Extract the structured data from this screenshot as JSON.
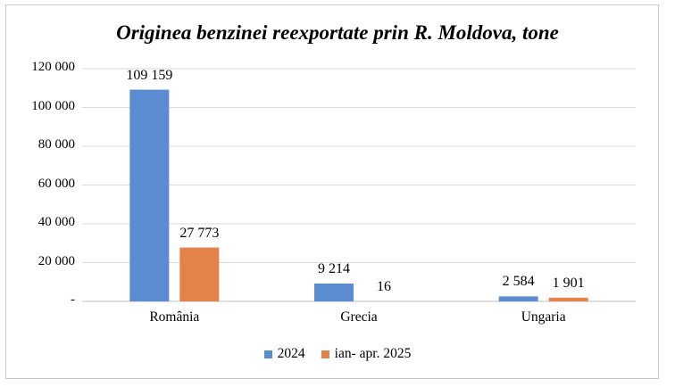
{
  "chart_data": {
    "type": "bar",
    "title": "Originea benzinei reexportate prin R. Moldova, tone",
    "categories": [
      "România",
      "Grecia",
      "Ungaria"
    ],
    "series": [
      {
        "name": "2024",
        "values": [
          109159,
          9214,
          2584
        ],
        "labels": [
          "109 159",
          "9 214",
          "2 584"
        ],
        "color": "#5b8bd0"
      },
      {
        "name": "ian- apr. 2025",
        "values": [
          27773,
          16,
          1901
        ],
        "labels": [
          "27 773",
          "16",
          "1 901"
        ],
        "color": "#e3834a"
      }
    ],
    "y_ticks": [
      "-",
      "20 000",
      "40 000",
      "60 000",
      "80 000",
      "100 000",
      "120 000"
    ],
    "ylim": [
      0,
      120000
    ],
    "grid": true,
    "legend": "bottom"
  }
}
